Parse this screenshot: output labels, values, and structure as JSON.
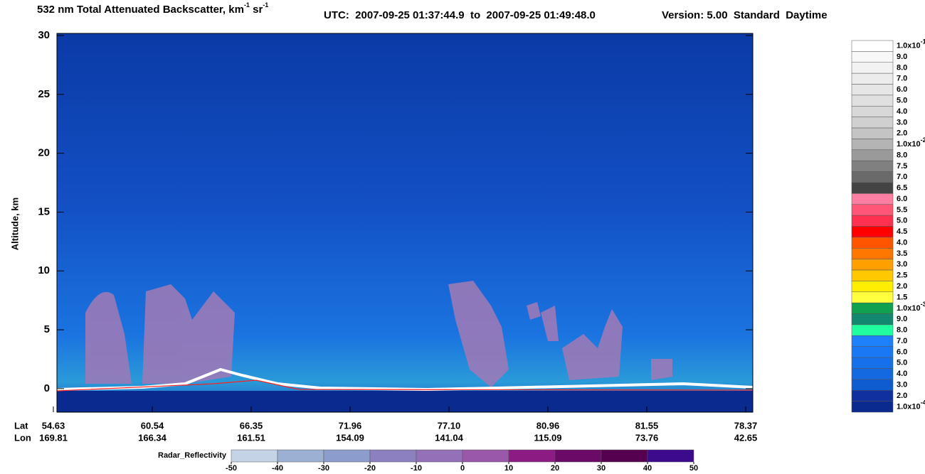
{
  "chart_data": {
    "type": "curtain",
    "title": "532 nm Total Attenuated Backscatter, km",
    "title_unit_exp": "-1",
    "title_unit2": " sr",
    "title_unit2_exp": "-1",
    "utc": "UTC:  2007-09-25 01:37:44.9  to  2007-09-25 01:49:48.0",
    "version": "Version: 5.00  Standard  Daytime",
    "y_label": "Altitude, km",
    "ylim": [
      -2,
      30
    ],
    "yticks": [
      0,
      5,
      10,
      15,
      20,
      25,
      30
    ],
    "x_tick_rows": [
      {
        "name": "Lat",
        "values": [
          54.63,
          60.54,
          66.35,
          71.96,
          {
            "value": 77.1,
            "label": "77.10"
          },
          80.96,
          81.55,
          78.37
        ]
      },
      {
        "name": "Lon",
        "values": [
          169.81,
          166.34,
          161.51,
          154.09,
          141.04,
          115.09,
          73.76,
          42.65
        ]
      }
    ],
    "colorbar": {
      "labels": [
        {
          "text": "1.0x10",
          "sup": "-1"
        },
        "9.0",
        "8.0",
        "7.0",
        "6.0",
        "5.0",
        "4.0",
        "3.0",
        "2.0",
        {
          "text": "1.0x10",
          "sup": "-2"
        },
        "8.0",
        "7.5",
        "7.0",
        "6.5",
        "6.0",
        "5.5",
        "5.0",
        "4.5",
        "4.0",
        "3.5",
        "3.0",
        "2.5",
        "2.0",
        "1.5",
        {
          "text": "1.0x10",
          "sup": "-3"
        },
        "9.0",
        "8.0",
        "7.0",
        "6.0",
        "5.0",
        "4.0",
        "3.0",
        "2.0",
        {
          "text": "1.0x10",
          "sup": "-4"
        }
      ],
      "colors": [
        "#ffffff",
        "#f8f8f8",
        "#f2f2f2",
        "#ececec",
        "#e6e6e6",
        "#e0e0e0",
        "#d8d8d8",
        "#d0d0d0",
        "#c4c4c4",
        "#b4b4b4",
        "#9a9a9a",
        "#808080",
        "#6a6a6a",
        "#444444",
        "#ff7fa0",
        "#ff5577",
        "#ff3050",
        "#ff0000",
        "#ff5500",
        "#ff7700",
        "#ffa000",
        "#ffc800",
        "#ffee00",
        "#ffff40",
        "#10a050",
        "#128870",
        "#20ffa0",
        "#1e7fff",
        "#1a78f5",
        "#1670ea",
        "#1468e0",
        "#0f5cd0",
        "#1030a0",
        "#0a2a90"
      ]
    },
    "radar_colorbar": {
      "label": "Radar_Reflectivity",
      "lim": [
        -50,
        50
      ],
      "ticks": [
        -50,
        -40,
        -30,
        -20,
        -10,
        0,
        10,
        20,
        30,
        40,
        50
      ],
      "colors": [
        "#c4d4e6",
        "#9cb0d4",
        "#8c9ccc",
        "#8c80c0",
        "#9470b8",
        "#9a58aa",
        "#8c1c84",
        "#6c0a68",
        "#560050",
        "#3c0a8c"
      ]
    }
  }
}
